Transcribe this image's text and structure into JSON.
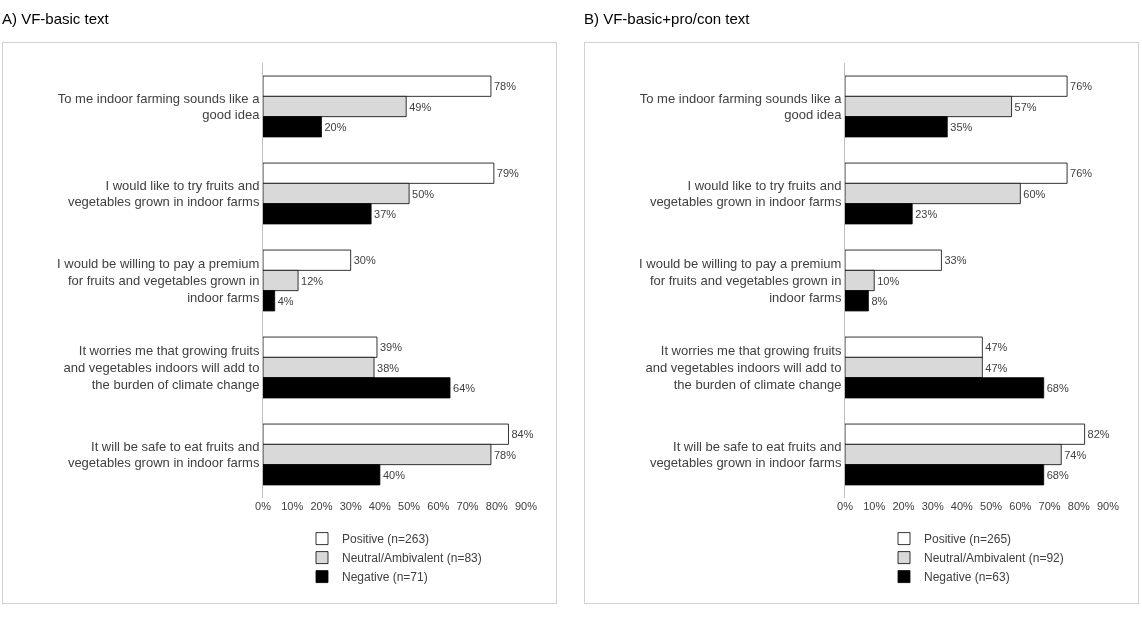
{
  "chart_data": [
    {
      "type": "bar",
      "orientation": "horizontal",
      "title": "A) VF-basic text",
      "categories": [
        "To me indoor farming sounds like a good idea",
        "I would like to try fruits and vegetables grown in indoor farms",
        "I would be willing to pay a premium for fruits and vegetables grown in indoor farms",
        "It worries me that growing fruits and vegetables indoors will add to the burden of climate change",
        "It will be safe to eat fruits and vegetables grown in indoor farms"
      ],
      "series": [
        {
          "name": "Positive (n=263)",
          "color": "#ffffff",
          "values": [
            78,
            79,
            30,
            39,
            84
          ],
          "value_labels": [
            "78%",
            "79%",
            "30%",
            "39%",
            "84%"
          ]
        },
        {
          "name": "Neutral/Ambivalent (n=83)",
          "color": "#d9d9d9",
          "values": [
            49,
            50,
            12,
            38,
            78
          ],
          "value_labels": [
            "49%",
            "50%",
            "12%",
            "38%",
            "78%"
          ]
        },
        {
          "name": "Negative (n=71)",
          "color": "#000000",
          "values": [
            20,
            37,
            4,
            64,
            40
          ],
          "value_labels": [
            "20%",
            "37%",
            "4%",
            "64%",
            "40%"
          ]
        }
      ],
      "xlim": [
        0,
        90
      ],
      "xticks": [
        {
          "value": 0,
          "label": "0%"
        },
        {
          "value": 10,
          "label": "10%"
        },
        {
          "value": 20,
          "label": "20%"
        },
        {
          "value": 30,
          "label": "30%"
        },
        {
          "value": 40,
          "label": "40%"
        },
        {
          "value": 50,
          "label": "50%"
        },
        {
          "value": 60,
          "label": "60%"
        },
        {
          "value": 70,
          "label": "70%"
        },
        {
          "value": 80,
          "label": "80%"
        },
        {
          "value": 90,
          "label": "90%"
        }
      ],
      "grid": false,
      "legend": "bottom"
    },
    {
      "type": "bar",
      "orientation": "horizontal",
      "title": "B) VF-basic+pro/con text",
      "categories": [
        "To me indoor farming sounds like a good idea",
        "I would like to try fruits and vegetables grown in indoor farms",
        "I would be willing to pay a premium for fruits and vegetables grown in indoor farms",
        "It worries me that growing fruits and vegetables indoors will add to the burden of climate change",
        "It will be safe to eat fruits and vegetables grown in indoor farms"
      ],
      "series": [
        {
          "name": "Positive (n=265)",
          "color": "#ffffff",
          "values": [
            76,
            76,
            33,
            47,
            82
          ],
          "value_labels": [
            "76%",
            "76%",
            "33%",
            "47%",
            "82%"
          ]
        },
        {
          "name": "Neutral/Ambivalent (n=92)",
          "color": "#d9d9d9",
          "values": [
            57,
            60,
            10,
            47,
            74
          ],
          "value_labels": [
            "57%",
            "60%",
            "10%",
            "47%",
            "74%"
          ]
        },
        {
          "name": "Negative (n=63)",
          "color": "#000000",
          "values": [
            35,
            23,
            8,
            68,
            68
          ],
          "value_labels": [
            "35%",
            "23%",
            "8%",
            "68%",
            "68%"
          ]
        }
      ],
      "xlim": [
        0,
        90
      ],
      "xticks": [
        {
          "value": 0,
          "label": "0%"
        },
        {
          "value": 10,
          "label": "10%"
        },
        {
          "value": 20,
          "label": "20%"
        },
        {
          "value": 30,
          "label": "30%"
        },
        {
          "value": 40,
          "label": "40%"
        },
        {
          "value": 50,
          "label": "50%"
        },
        {
          "value": 60,
          "label": "60%"
        },
        {
          "value": 70,
          "label": "70%"
        },
        {
          "value": 80,
          "label": "80%"
        },
        {
          "value": 90,
          "label": "90%"
        }
      ],
      "grid": false,
      "legend": "bottom"
    }
  ]
}
